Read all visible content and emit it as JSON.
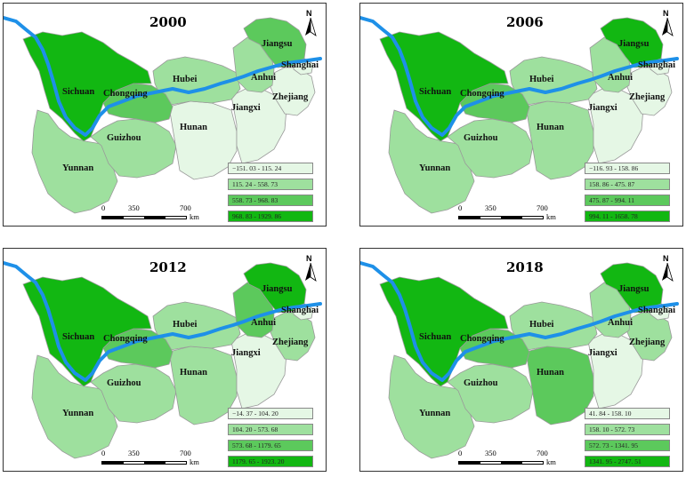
{
  "colors": {
    "class1": "#e5f7e5",
    "class2": "#9ee09e",
    "class3": "#5cc95c",
    "class4": "#12b712",
    "river": "#1e90e8",
    "border": "#9a9a9a"
  },
  "labels": {
    "sichuan": "Sichuan",
    "chongqing": "Chongqing",
    "guizhou": "Guizhou",
    "yunnan": "Yunnan",
    "hubei": "Hubei",
    "hunan": "Hunan",
    "jiangxi": "Jiangxi",
    "anhui": "Anhui",
    "jiangsu": "Jiangsu",
    "shanghai": "Shanghai",
    "zhejiang": "Zhejiang"
  },
  "scale": {
    "ticks": [
      "0",
      "350",
      "700"
    ],
    "unit": "km"
  },
  "north": "N",
  "panels": [
    {
      "year": "2000",
      "legend": [
        "−151. 03 - 115. 24",
        "115. 24 - 558. 73",
        "558. 73 - 968. 83",
        "968. 83 - 1929. 86"
      ],
      "classes": {
        "sichuan": 4,
        "yunnan": 2,
        "guizhou": 2,
        "chongqing": 3,
        "hubei": 2,
        "hunan": 1,
        "jiangxi": 1,
        "anhui": 2,
        "jiangsu": 3,
        "shanghai": 1,
        "zhejiang": 1
      }
    },
    {
      "year": "2006",
      "legend": [
        "−116. 93 - 158. 86",
        "158. 86 - 475. 87",
        "475. 87 - 994. 11",
        "994. 11 - 1658. 78"
      ],
      "classes": {
        "sichuan": 4,
        "yunnan": 2,
        "guizhou": 2,
        "chongqing": 3,
        "hubei": 2,
        "hunan": 2,
        "jiangxi": 1,
        "anhui": 2,
        "jiangsu": 4,
        "shanghai": 1,
        "zhejiang": 1
      }
    },
    {
      "year": "2012",
      "legend": [
        "−14. 37 - 104. 20",
        "104. 20 - 573. 68",
        "573. 68 - 1179. 65",
        "1179. 65 - 1923. 20"
      ],
      "classes": {
        "sichuan": 4,
        "yunnan": 2,
        "guizhou": 2,
        "chongqing": 3,
        "hubei": 2,
        "hunan": 2,
        "jiangxi": 1,
        "anhui": 3,
        "jiangsu": 4,
        "shanghai": 1,
        "zhejiang": 2
      }
    },
    {
      "year": "2018",
      "legend": [
        "41. 84 - 158. 10",
        "158. 10 - 572. 73",
        "572. 73 - 1341. 95",
        "1341. 95 - 2747. 51"
      ],
      "classes": {
        "sichuan": 4,
        "yunnan": 2,
        "guizhou": 2,
        "chongqing": 3,
        "hubei": 2,
        "hunan": 3,
        "jiangxi": 1,
        "anhui": 2,
        "jiangsu": 4,
        "shanghai": 1,
        "zhejiang": 2
      }
    }
  ]
}
